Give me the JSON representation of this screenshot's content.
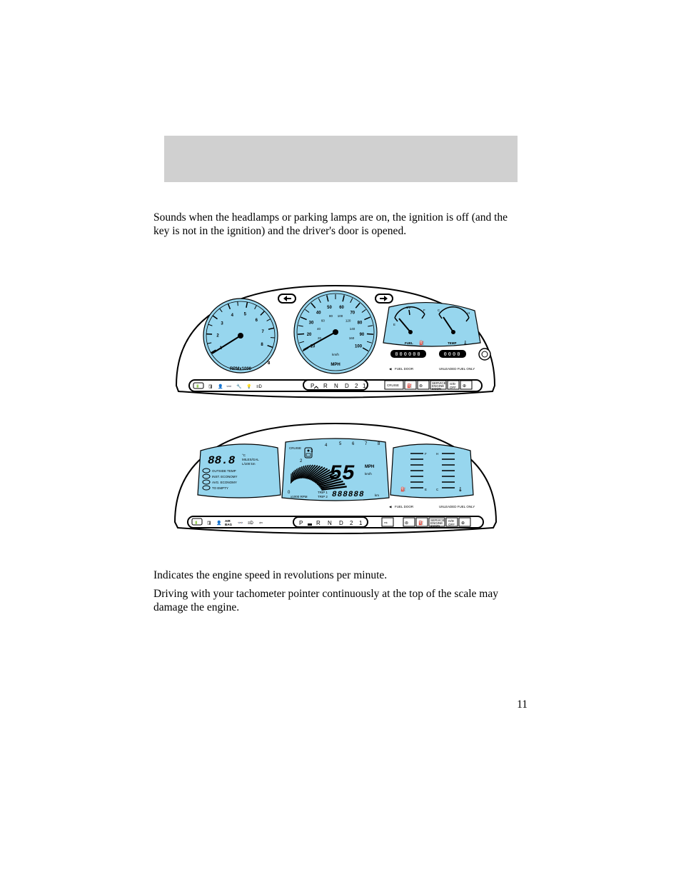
{
  "colors": {
    "background": "#ffffff",
    "header_band": "#d0d0d0",
    "panel_fill": "#97d6ee",
    "outline": "#000000",
    "text": "#000000"
  },
  "header": {
    "band_color": "#d0d0d0"
  },
  "paragraphs": {
    "p1": "Sounds when the headlamps or parking lamps are on, the ignition is off (and the key is not in the ignition) and the driver's door is opened.",
    "p2": "Indicates the engine speed in revolutions per minute.",
    "p3": "Driving with your tachometer pointer continuously at the top of the scale may damage the engine."
  },
  "page_number": "11",
  "analog_cluster": {
    "type": "diagram",
    "tachometer": {
      "label": "RPMx1000",
      "ticks": [
        "1",
        "2",
        "3",
        "4",
        "5",
        "6",
        "7",
        "8"
      ],
      "max_label": "8",
      "needle_angle_deg": 200
    },
    "speedometer": {
      "unit_primary": "MPH",
      "unit_secondary": "km/h",
      "ticks_mph": [
        "10",
        "20",
        "30",
        "40",
        "50",
        "60",
        "70",
        "80",
        "90",
        "100"
      ],
      "ticks_kmh": [
        "20",
        "40",
        "60",
        "80",
        "100",
        "120",
        "140",
        "160"
      ],
      "needle_angle_deg": 200
    },
    "fuel_gauge": {
      "label": "FUEL",
      "marks": [
        "E",
        "1/2",
        "F"
      ]
    },
    "temp_gauge": {
      "label": "TEMP",
      "marks": [
        "C",
        "H"
      ]
    },
    "odometer": {
      "digits": "000000",
      "segments": 6,
      "color_bg": "#000000",
      "color_fg": "#ffffff"
    },
    "trip": {
      "digits": "0000",
      "segments": 4,
      "color_bg": "#000000",
      "color_fg": "#ffffff"
    },
    "gear_selector": [
      "P",
      "R",
      "N",
      "D",
      "2",
      "1"
    ],
    "fuel_door_label": "FUEL DOOR",
    "fuel_door_arrow": "◀",
    "fuel_only_label": "UNLEADED FUEL ONLY",
    "indicator_strip": {
      "cruise_label": "CRUISE"
    }
  },
  "digital_cluster": {
    "type": "diagram",
    "info_panel": {
      "display_value": "88.8",
      "lines": [
        "°C",
        "MILES/GAL",
        "L/100 km",
        "OUTSIDE TEMP",
        "INST. ECONOMY",
        "AVG. ECONOMY",
        "TO EMPTY"
      ]
    },
    "speed_panel": {
      "cruise_label": "CRUISE",
      "speed_value": "55",
      "speed_unit_primary": "MPH",
      "speed_unit_secondary": "km/h",
      "rpm_scale": [
        "0",
        "1",
        "2",
        "3",
        "4",
        "5",
        "6",
        "7",
        "8"
      ],
      "rpm_label": "x1000 RPM",
      "odometer_value": "888888",
      "odometer_unit": "km",
      "trip_labels": [
        "TRIP 1",
        "TRIP 2"
      ]
    },
    "right_panel": {
      "fuel_marks": [
        "E",
        "F"
      ],
      "temp_marks": [
        "C",
        "H"
      ]
    },
    "gear_selector": [
      "P",
      "R",
      "N",
      "D",
      "2",
      "1"
    ],
    "fuel_door_label": "FUEL DOOR",
    "fuel_door_arrow": "◀",
    "fuel_only_label": "UNLEADED FUEL ONLY"
  }
}
